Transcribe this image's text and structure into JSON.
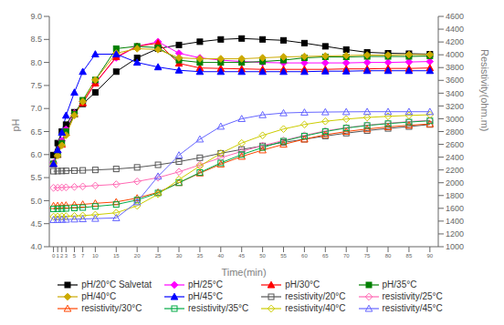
{
  "chart_data": {
    "type": "line",
    "xlabel": "Time(min)",
    "ylabel": "pH",
    "y2label": "Resistivity(ohm.m)",
    "x": [
      0,
      1,
      2,
      3,
      5,
      7,
      10,
      15,
      20,
      25,
      30,
      35,
      40,
      45,
      50,
      55,
      60,
      65,
      70,
      75,
      80,
      85,
      90
    ],
    "xlim": [
      -1,
      92
    ],
    "xticks": [
      0,
      1,
      2,
      3,
      5,
      7,
      10,
      15,
      20,
      25,
      30,
      35,
      40,
      45,
      50,
      55,
      60,
      65,
      70,
      75,
      80,
      85,
      90
    ],
    "ylim": [
      4.0,
      9.0
    ],
    "yticks": [
      {
        "value": 4.0,
        "label": "4.0"
      },
      4.5,
      {
        "value": 5.0,
        "label": "5.0"
      },
      5.5,
      {
        "value": 6.0,
        "label": "6.0"
      },
      6.5,
      {
        "value": 7.0,
        "label": "7.0"
      },
      7.5,
      {
        "value": 8.0,
        "label": "8.0"
      },
      8.5,
      {
        "value": 9.0,
        "label": "9.0"
      }
    ],
    "y2lim": [
      1000,
      4600
    ],
    "y2ticks": [
      1000,
      1200,
      1400,
      1600,
      1800,
      2000,
      2200,
      2400,
      2600,
      2800,
      3000,
      3200,
      3400,
      3600,
      3800,
      4000,
      4200,
      4400,
      4600
    ],
    "grid": false,
    "legend": "bottom",
    "series": [
      {
        "name": "pH/20°C Salvetat",
        "color": "#000000",
        "marker": "square",
        "values": [
          5.99,
          6.25,
          6.5,
          6.65,
          6.92,
          7.1,
          7.35,
          7.8,
          8.1,
          8.3,
          8.38,
          8.45,
          8.5,
          8.52,
          8.5,
          8.48,
          8.42,
          8.35,
          8.28,
          8.22,
          8.2,
          8.19,
          8.18
        ]
      },
      {
        "name": "pH/25°C",
        "color": "#ff00ff",
        "marker": "diamond",
        "values": [
          5.82,
          6.05,
          6.3,
          6.55,
          6.9,
          7.15,
          7.55,
          8.1,
          8.35,
          8.45,
          8.2,
          8.1,
          8.05,
          8.02,
          8.0,
          7.99,
          7.99,
          7.99,
          7.99,
          8.0,
          8.0,
          8.01,
          8.02
        ]
      },
      {
        "name": "pH/30°C",
        "color": "#ff0000",
        "marker": "triangle",
        "values": [
          5.8,
          6.0,
          6.22,
          6.48,
          6.88,
          7.12,
          7.55,
          8.12,
          8.35,
          8.42,
          7.98,
          7.88,
          7.87,
          7.86,
          7.85,
          7.85,
          7.85,
          7.85,
          7.86,
          7.86,
          7.87,
          7.87,
          7.88
        ]
      },
      {
        "name": "pH/35°C",
        "color": "#008000",
        "marker": "square",
        "values": [
          5.8,
          6.0,
          6.25,
          6.5,
          6.88,
          7.18,
          7.62,
          8.3,
          8.35,
          8.32,
          8.05,
          8.0,
          8.0,
          8.0,
          8.02,
          8.05,
          8.1,
          8.12,
          8.12,
          8.13,
          8.13,
          8.13,
          8.14
        ]
      },
      {
        "name": "pH/40°C",
        "color": "#ccaa00",
        "marker": "diamond",
        "values": [
          5.8,
          5.98,
          6.2,
          6.42,
          6.85,
          7.15,
          7.62,
          8.2,
          8.3,
          8.28,
          8.1,
          8.08,
          8.08,
          8.08,
          8.1,
          8.12,
          8.13,
          8.14,
          8.15,
          8.16,
          8.16,
          8.17,
          8.17
        ]
      },
      {
        "name": "pH/45°C",
        "color": "#0000ff",
        "marker": "triangle",
        "values": [
          5.8,
          6.1,
          6.48,
          6.85,
          7.35,
          7.8,
          8.18,
          8.18,
          8.0,
          7.9,
          7.83,
          7.8,
          7.8,
          7.8,
          7.8,
          7.8,
          7.8,
          7.81,
          7.81,
          7.82,
          7.82,
          7.82,
          7.82
        ]
      },
      {
        "name": "resistivity/20°C",
        "color": "#555555",
        "marker": "square",
        "axis": "y2",
        "values": [
          2180,
          2182,
          2184,
          2186,
          2190,
          2194,
          2200,
          2215,
          2240,
          2280,
          2330,
          2390,
          2460,
          2520,
          2575,
          2630,
          2680,
          2730,
          2775,
          2815,
          2848,
          2878,
          2910
        ]
      },
      {
        "name": "resistivity/25°C",
        "color": "#ff69b4",
        "marker": "diamond",
        "axis": "y2",
        "values": [
          1920,
          1922,
          1925,
          1928,
          1935,
          1942,
          1955,
          1975,
          2020,
          2080,
          2170,
          2280,
          2390,
          2490,
          2580,
          2660,
          2740,
          2810,
          2860,
          2900,
          2930,
          2955,
          2975
        ]
      },
      {
        "name": "resistivity/30°C",
        "color": "#ff4500",
        "marker": "triangle",
        "axis": "y2",
        "values": [
          1640,
          1642,
          1645,
          1648,
          1655,
          1662,
          1678,
          1700,
          1760,
          1850,
          2000,
          2150,
          2290,
          2410,
          2510,
          2600,
          2680,
          2750,
          2800,
          2840,
          2872,
          2898,
          2918
        ]
      },
      {
        "name": "resistivity/35°C",
        "color": "#00aa44",
        "marker": "square",
        "axis": "y2",
        "values": [
          1590,
          1592,
          1595,
          1598,
          1605,
          1612,
          1630,
          1660,
          1730,
          1840,
          2000,
          2160,
          2310,
          2440,
          2550,
          2650,
          2730,
          2800,
          2855,
          2895,
          2924,
          2948,
          2968
        ]
      },
      {
        "name": "resistivity/40°C",
        "color": "#cccc00",
        "marker": "diamond",
        "axis": "y2",
        "values": [
          1470,
          1472,
          1474,
          1476,
          1480,
          1486,
          1500,
          1530,
          1640,
          1820,
          2050,
          2260,
          2460,
          2620,
          2740,
          2840,
          2910,
          2960,
          2995,
          3020,
          3038,
          3052,
          3062
        ]
      },
      {
        "name": "resistivity/45°C",
        "color": "#6666ff",
        "marker": "triangle",
        "axis": "y2",
        "values": [
          1420,
          1422,
          1424,
          1426,
          1430,
          1434,
          1440,
          1450,
          1700,
          2100,
          2430,
          2680,
          2880,
          3000,
          3060,
          3090,
          3100,
          3105,
          3108,
          3110,
          3110,
          3110,
          3110
        ]
      }
    ]
  }
}
